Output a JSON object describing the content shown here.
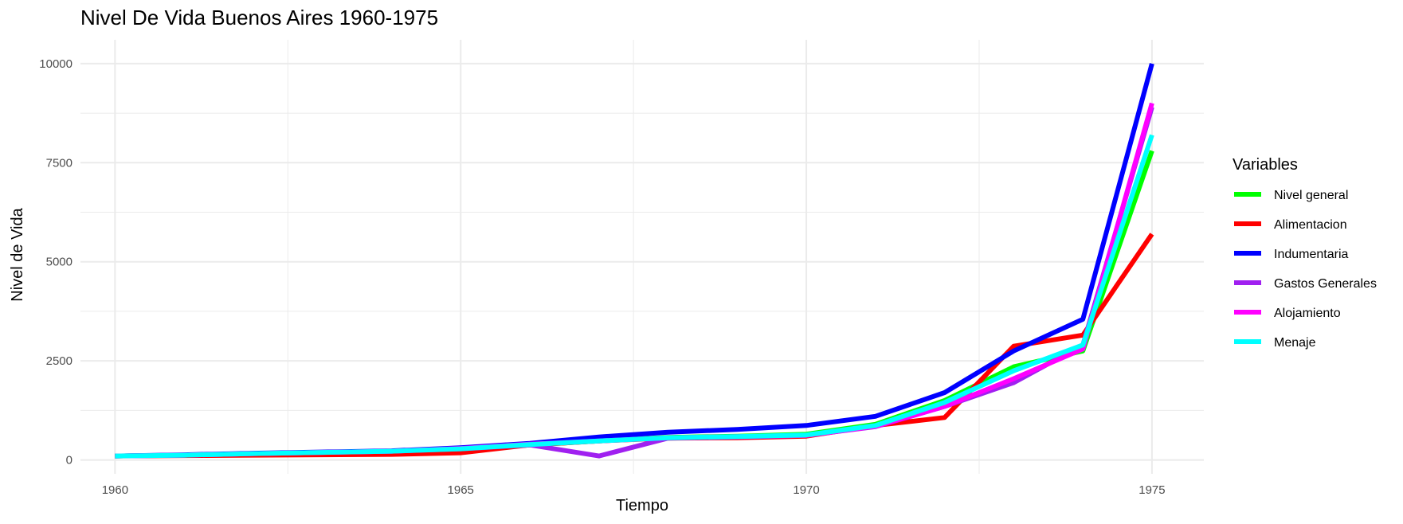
{
  "chart_data": {
    "type": "line",
    "title": "Nivel De Vida Buenos Aires 1960-1975",
    "xlabel": "Tiempo",
    "ylabel": "Nivel de Vida",
    "xlim": [
      1959.5,
      1975.75
    ],
    "ylim": [
      -350,
      10600
    ],
    "x_ticks": [
      1960,
      1965,
      1970,
      1975
    ],
    "x_tick_labels": [
      "1960",
      "1965",
      "1970",
      "1975"
    ],
    "y_ticks": [
      0,
      2500,
      5000,
      7500,
      10000
    ],
    "y_tick_labels": [
      "0",
      "2500",
      "5000",
      "7500",
      "10000"
    ],
    "grid": true,
    "legend": {
      "title": "Variables",
      "position": "right"
    },
    "x": [
      1960,
      1961,
      1962,
      1963,
      1964,
      1965,
      1966,
      1967,
      1968,
      1969,
      1970,
      1971,
      1972,
      1973,
      1974,
      1975
    ],
    "series": [
      {
        "name": "Nivel general",
        "color": "#00ff00",
        "values": [
          100,
          120,
          150,
          180,
          200,
          260,
          380,
          480,
          570,
          600,
          650,
          900,
          1500,
          2350,
          2750,
          7800
        ]
      },
      {
        "name": "Alimentacion",
        "color": "#ff0000",
        "values": [
          100,
          110,
          120,
          130,
          140,
          180,
          380,
          480,
          550,
          560,
          600,
          870,
          1070,
          2870,
          3150,
          5700
        ]
      },
      {
        "name": "Indumentaria",
        "color": "#0000ff",
        "values": [
          100,
          130,
          170,
          200,
          230,
          310,
          420,
          580,
          700,
          770,
          870,
          1100,
          1700,
          2750,
          3550,
          10000
        ]
      },
      {
        "name": "Gastos Generales",
        "color": "#a020f0",
        "values": [
          100,
          120,
          160,
          190,
          220,
          280,
          380,
          100,
          550,
          580,
          620,
          840,
          1350,
          1950,
          2900,
          8900
        ]
      },
      {
        "name": "Alojamiento",
        "color": "#ff00ff",
        "values": [
          100,
          120,
          160,
          190,
          220,
          290,
          400,
          480,
          560,
          590,
          620,
          850,
          1350,
          2050,
          2800,
          9000
        ]
      },
      {
        "name": "Menaje",
        "color": "#00ffff",
        "values": [
          100,
          120,
          160,
          190,
          220,
          280,
          390,
          480,
          560,
          590,
          630,
          870,
          1450,
          2250,
          2900,
          8200
        ]
      }
    ]
  }
}
